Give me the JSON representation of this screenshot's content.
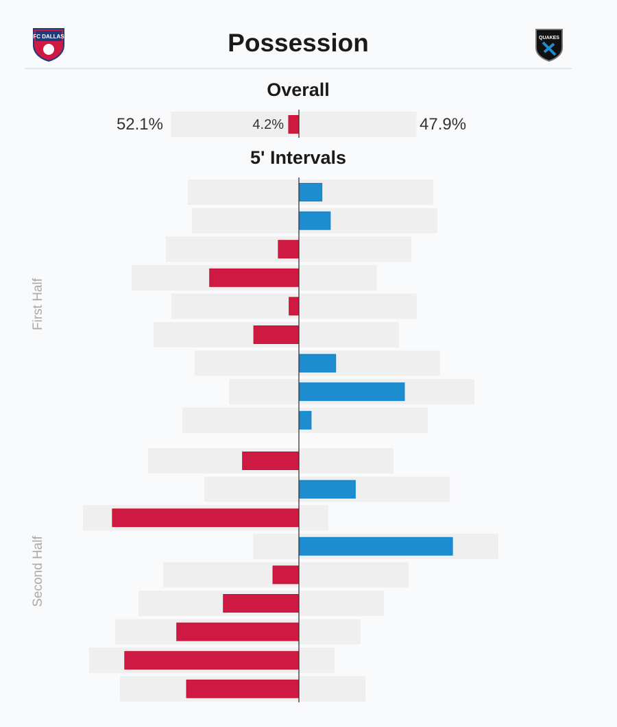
{
  "header": {
    "title": "Possession",
    "home_logo": "FC DALLAS",
    "away_logo": "QUAKES"
  },
  "chart_data": {
    "type": "bar",
    "orientation": "diverging-horizontal",
    "colors": {
      "home": "#ce1a43",
      "away": "#1e8dd0",
      "background": "#efefef"
    },
    "overall": {
      "title": "Overall",
      "home_label": "52.1%",
      "away_label": "47.9%",
      "diff_label": "4.2%",
      "home": 52.1,
      "away": 47.9
    },
    "intervals": {
      "title": "5' Intervals",
      "groups": [
        {
          "label": "First Half",
          "home": [
            45.3,
            43.6,
            54.2,
            68.2,
            52.0,
            59.2,
            42.5,
            28.5,
            47.5
          ]
        },
        {
          "label": "Second Half",
          "home": [
            61.5,
            38.5,
            88.0,
            18.7,
            55.3,
            65.4,
            74.9,
            85.5,
            72.9
          ]
        }
      ]
    }
  }
}
